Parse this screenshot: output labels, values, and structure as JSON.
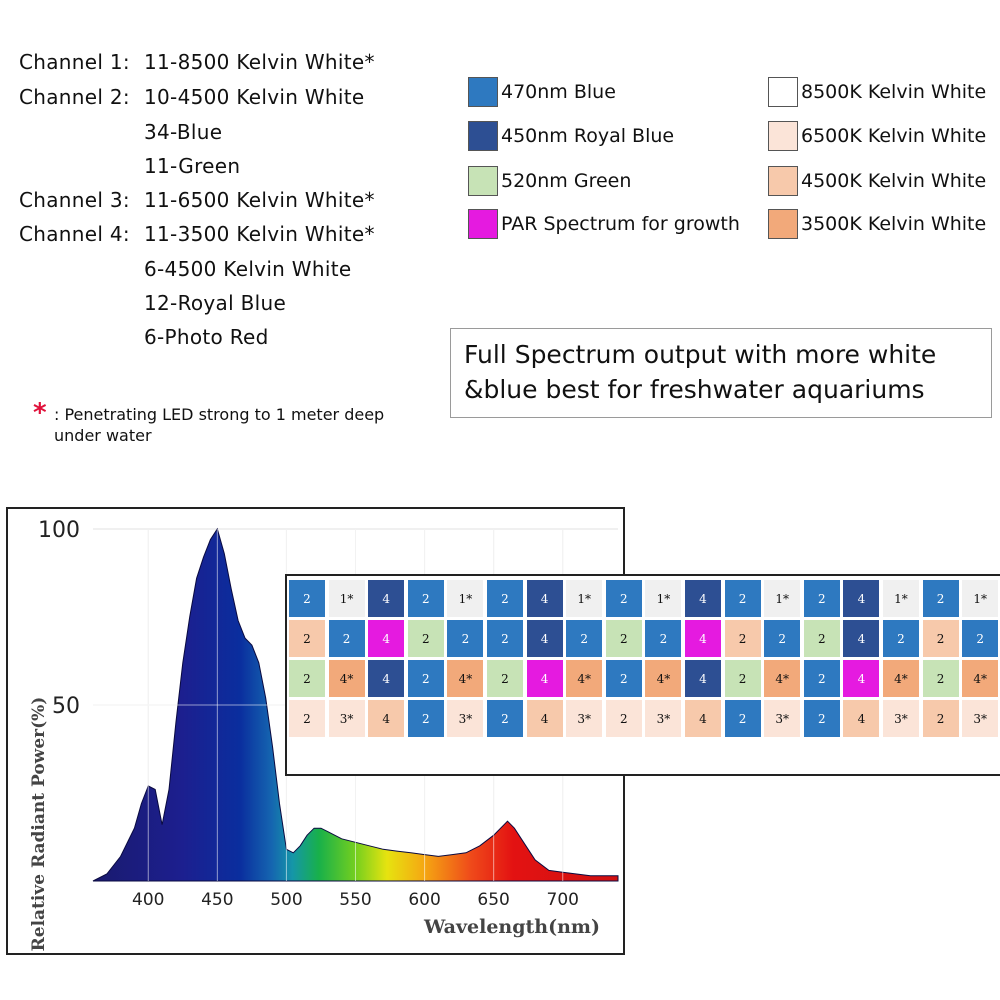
{
  "channels": [
    {
      "label": "Channel 1:",
      "lines": [
        "11-8500 Kelvin White*"
      ]
    },
    {
      "label": "Channel 2:",
      "lines": [
        "10-4500 Kelvin White",
        "34-Blue",
        "11-Green"
      ]
    },
    {
      "label": "Channel 3:",
      "lines": [
        "11-6500 Kelvin White*"
      ]
    },
    {
      "label": "Channel 4:",
      "lines": [
        "11-3500 Kelvin White*",
        "6-4500 Kelvin White",
        "12-Royal Blue",
        "6-Photo Red"
      ]
    }
  ],
  "note": {
    "star": "*",
    "text": ": Penetrating LED strong to 1 meter deep under water"
  },
  "legend": [
    {
      "label": "470nm Blue",
      "color": "#2e79c0"
    },
    {
      "label": "450nm Royal Blue",
      "color": "#2d4f93"
    },
    {
      "label": "520nm Green",
      "color": "#c7e3b6"
    },
    {
      "label": "PAR Spectrum for growth",
      "color": "#e51ae0"
    },
    {
      "label": "8500K Kelvin White",
      "color": "#ffffff"
    },
    {
      "label": "6500K Kelvin White",
      "color": "#fbe4d8"
    },
    {
      "label": "4500K Kelvin White",
      "color": "#f7c9ab"
    },
    {
      "label": "3500K Kelvin White",
      "color": "#f2a97a"
    }
  ],
  "banner": {
    "line1": "Full Spectrum output with more white",
    "line2": "&blue best for freshwater aquariums"
  },
  "led_grid": {
    "rows": [
      [
        "2",
        "1*",
        "4",
        "2",
        "1*",
        "2",
        "4",
        "1*",
        "2",
        "1*",
        "4",
        "2",
        "1*",
        "2",
        "4",
        "1*",
        "2",
        "1*"
      ],
      [
        "2",
        "2",
        "4",
        "2",
        "2",
        "2",
        "4",
        "2",
        "2",
        "2",
        "4",
        "2",
        "2",
        "2",
        "4",
        "2",
        "2",
        "2"
      ],
      [
        "2",
        "4*",
        "4",
        "2",
        "4*",
        "2",
        "4",
        "4*",
        "2",
        "4*",
        "4",
        "2",
        "4*",
        "2",
        "4",
        "4*",
        "2",
        "4*"
      ],
      [
        "2",
        "3*",
        "4",
        "2",
        "3*",
        "2",
        "4",
        "3*",
        "2",
        "3*",
        "4",
        "2",
        "3*",
        "2",
        "4",
        "3*",
        "2",
        "3*"
      ]
    ],
    "colors": [
      [
        "#2e79c0",
        "#f0f0f0",
        "#2d4f93",
        "#2e79c0",
        "#f0f0f0",
        "#2e79c0",
        "#2d4f93",
        "#f0f0f0",
        "#2e79c0",
        "#f0f0f0",
        "#2d4f93",
        "#2e79c0",
        "#f0f0f0",
        "#2e79c0",
        "#2d4f93",
        "#f0f0f0",
        "#2e79c0",
        "#f0f0f0"
      ],
      [
        "#f7c9ab",
        "#2e79c0",
        "#e51ae0",
        "#c7e3b6",
        "#2e79c0",
        "#2e79c0",
        "#2d4f93",
        "#2e79c0",
        "#c7e3b6",
        "#2e79c0",
        "#e51ae0",
        "#f7c9ab",
        "#2e79c0",
        "#c7e3b6",
        "#2d4f93",
        "#2e79c0",
        "#f7c9ab",
        "#2e79c0"
      ],
      [
        "#c7e3b6",
        "#f2a97a",
        "#2d4f93",
        "#2e79c0",
        "#f2a97a",
        "#c7e3b6",
        "#e51ae0",
        "#f2a97a",
        "#2e79c0",
        "#f2a97a",
        "#2d4f93",
        "#c7e3b6",
        "#f2a97a",
        "#2e79c0",
        "#e51ae0",
        "#f2a97a",
        "#c7e3b6",
        "#f2a97a"
      ],
      [
        "#fbe4d8",
        "#fbe4d8",
        "#f7c9ab",
        "#2e79c0",
        "#fbe4d8",
        "#2e79c0",
        "#f7c9ab",
        "#fbe4d8",
        "#fbe4d8",
        "#fbe4d8",
        "#f7c9ab",
        "#2e79c0",
        "#fbe4d8",
        "#2e79c0",
        "#f7c9ab",
        "#fbe4d8",
        "#f7c9ab",
        "#fbe4d8"
      ]
    ]
  },
  "chart_data": {
    "type": "area",
    "title": "",
    "xlabel": "Wavelength(nm)",
    "ylabel": "Relative Radiant Power(%)",
    "xlim": [
      360,
      740
    ],
    "ylim": [
      0,
      100
    ],
    "xticks": [
      400,
      450,
      500,
      550,
      600,
      650,
      700
    ],
    "yticks": [
      50,
      100
    ],
    "grid": true,
    "x": [
      360,
      370,
      380,
      390,
      395,
      400,
      405,
      410,
      415,
      420,
      425,
      430,
      435,
      440,
      445,
      450,
      455,
      460,
      465,
      470,
      475,
      480,
      485,
      490,
      495,
      500,
      505,
      510,
      515,
      520,
      525,
      530,
      540,
      550,
      560,
      570,
      580,
      590,
      600,
      610,
      620,
      630,
      640,
      650,
      655,
      660,
      665,
      670,
      680,
      690,
      700,
      710,
      720,
      730,
      740
    ],
    "y": [
      0,
      2,
      7,
      15,
      22,
      27,
      26,
      16,
      26,
      45,
      62,
      75,
      86,
      92,
      97,
      100,
      93,
      83,
      74,
      69,
      67,
      62,
      52,
      38,
      22,
      9,
      8,
      10,
      13,
      15,
      15,
      14,
      12,
      11,
      10,
      9,
      8.5,
      8,
      7.5,
      7,
      7.5,
      8,
      10,
      13,
      15,
      17,
      15,
      12,
      6,
      3,
      2.5,
      2,
      1.5,
      1.5,
      1.5
    ]
  }
}
